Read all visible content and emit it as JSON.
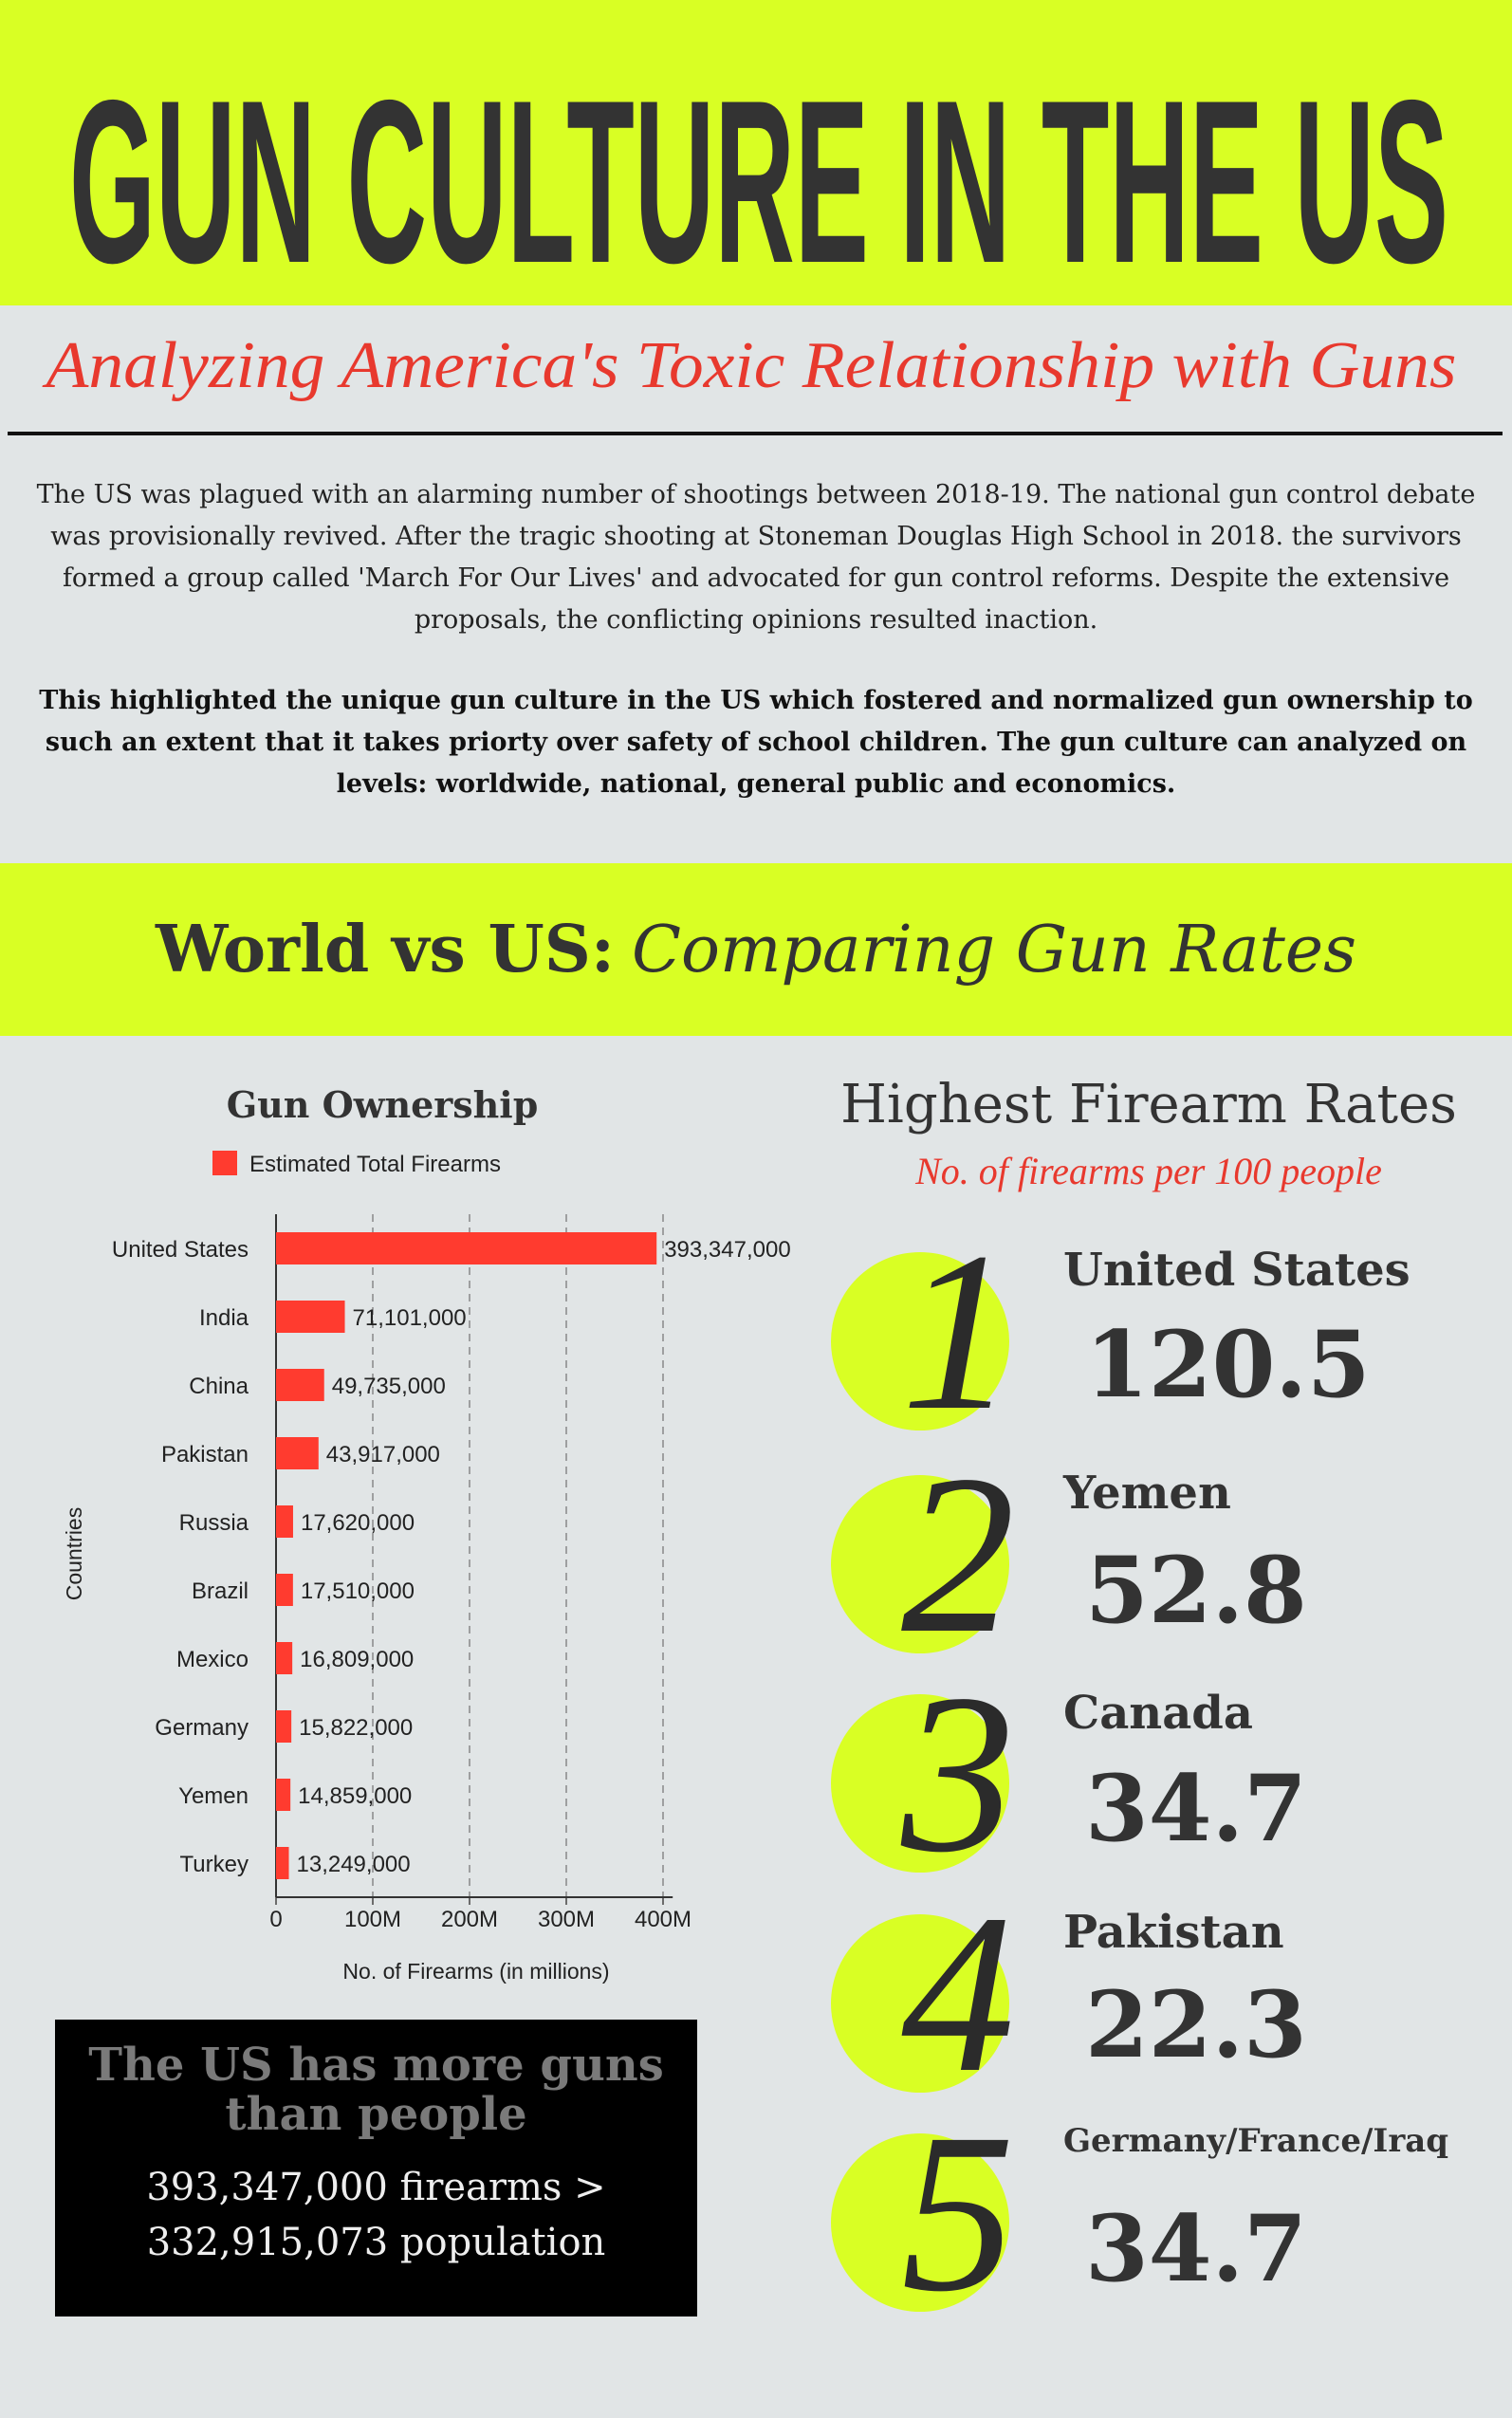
{
  "header": {
    "title": "GUN CULTURE IN THE US",
    "subtitle": "Analyzing America's Toxic Relationship with Guns"
  },
  "intro": {
    "paragraph": "The US was plagued with an alarming number of shootings between 2018-19. The national gun control debate was provisionally revived. After the tragic shooting at Stoneman Douglas High School in 2018. the survivors formed a group called 'March For Our Lives' and advocated for gun control reforms. Despite the extensive proposals, the conflicting opinions resulted inaction.",
    "highlight": "This highlighted the unique gun culture in the US which fostered and normalized gun ownership to such an extent that it takes priorty over safety of school children. The gun culture can analyzed on levels: worldwide, national, general public and economics."
  },
  "section": {
    "title_bold": "World vs US:",
    "title_italic": "Comparing Gun Rates"
  },
  "chart_data": {
    "type": "bar",
    "orientation": "horizontal",
    "title": "Gun Ownership",
    "xlabel": "No. of Firearms (in millions)",
    "ylabel": "Countries",
    "categories": [
      "United States",
      "India",
      "China",
      "Pakistan",
      "Russia",
      "Brazil",
      "Mexico",
      "Germany",
      "Yemen",
      "Turkey"
    ],
    "series": [
      {
        "name": "Estimated Total Firearms",
        "color": "#ff3b2f",
        "values": [
          393347000,
          71101000,
          49735000,
          43917000,
          17620000,
          17510000,
          16809000,
          15822000,
          14859000,
          13249000
        ],
        "value_labels": [
          "393,347,000",
          "71,101,000",
          "49,735,000",
          "43,917,000",
          "17,620,000",
          "17,510,000",
          "16,809,000",
          "15,822,000",
          "14,859,000",
          "13,249,000"
        ]
      }
    ],
    "xlim": [
      0,
      410000000
    ],
    "xticks": [
      0,
      {
        "value": 100000000,
        "label": "100M"
      },
      {
        "value": 200000000,
        "label": "200M"
      },
      {
        "value": 300000000,
        "label": "300M"
      },
      {
        "value": 400000000,
        "label": "400M"
      }
    ],
    "grid": true,
    "legend": "top"
  },
  "callout": {
    "heading": "The US has more guns than people",
    "text": "393,347,000 firearms > 332,915,073 population"
  },
  "rankings": {
    "title": "Highest Firearm Rates",
    "subtitle": "No. of firearms per 100 people",
    "items": [
      {
        "rank": 1,
        "country": "United States",
        "value": 120.5
      },
      {
        "rank": 2,
        "country": "Yemen",
        "value": 52.8
      },
      {
        "rank": 3,
        "country": "Canada",
        "value": 34.7
      },
      {
        "rank": 4,
        "country": "Pakistan",
        "value": 22.3
      },
      {
        "rank": 5,
        "country": "Germany/France/Iraq",
        "value": 34.7
      }
    ]
  }
}
